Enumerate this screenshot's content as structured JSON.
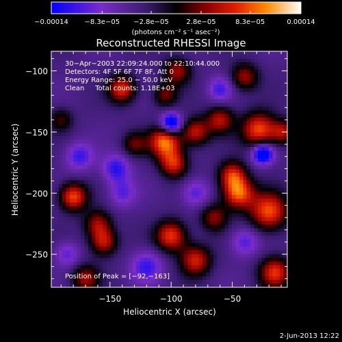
{
  "footer_date": "2-Jun-2013 12:22",
  "chart_data": {
    "type": "heatmap",
    "title": "Reconstructed RHESSI Image",
    "xlabel": "Heliocentric X (arcsec)",
    "ylabel": "Heliocentric Y (arcsec)",
    "xlim": [
      -198,
      -5
    ],
    "ylim": [
      -277,
      -84
    ],
    "xticks": [
      {
        "value": -150,
        "label": "−150"
      },
      {
        "value": -100,
        "label": "−100"
      },
      {
        "value": -50,
        "label": "−50"
      }
    ],
    "yticks": [
      {
        "value": -100,
        "label": "−100"
      },
      {
        "value": -150,
        "label": "−150"
      },
      {
        "value": -200,
        "label": "−200"
      },
      {
        "value": -250,
        "label": "−250"
      }
    ],
    "colorbar": {
      "range": [
        -0.00014,
        0.00014
      ],
      "ticks": [
        {
          "value": -0.00014,
          "label": "−0.00014"
        },
        {
          "value": -8.3e-05,
          "label": "−8.3e−05"
        },
        {
          "value": -2.8e-05,
          "label": "−2.8e−05"
        },
        {
          "value": 2.8e-05,
          "label": "2.8e−05"
        },
        {
          "value": 8.3e-05,
          "label": "8.3e−05"
        },
        {
          "value": 0.00014,
          "label": "0.00014"
        }
      ],
      "unit_label": "(photons cm⁻² s⁻¹ asec⁻²)",
      "stops": [
        "#0000ff",
        "#7a2cc8",
        "#3a1c6e",
        "#000000",
        "#8a0000",
        "#e02000",
        "#ff8a00",
        "#ffffff"
      ]
    },
    "annotations": [
      "30−Apr−2003 22:09:24.000 to 22:10:44.000",
      "Detectors: 4F 5F 6F 7F 8F, Att 0",
      "Energy Range: 25.0 − 50.0 keV",
      "Clean     Total counts: 1.18E+03"
    ],
    "peak_label": "Position of Peak = [−92,−163]",
    "peak": {
      "x": -92,
      "y": -163
    },
    "blobs": [
      {
        "x": -105,
        "y": -158,
        "amp": 1.0,
        "s": 9
      },
      {
        "x": -98,
        "y": -176,
        "amp": 0.75,
        "s": 8
      },
      {
        "x": -80,
        "y": -150,
        "amp": 0.7,
        "s": 8
      },
      {
        "x": -28,
        "y": -148,
        "amp": 0.9,
        "s": 10
      },
      {
        "x": -60,
        "y": -140,
        "amp": 0.65,
        "s": 8
      },
      {
        "x": -45,
        "y": -200,
        "amp": 0.95,
        "s": 9
      },
      {
        "x": -50,
        "y": -185,
        "amp": 0.75,
        "s": 8
      },
      {
        "x": -20,
        "y": -215,
        "amp": 0.9,
        "s": 11
      },
      {
        "x": -140,
        "y": -115,
        "amp": 0.8,
        "s": 8
      },
      {
        "x": -180,
        "y": -203,
        "amp": 0.9,
        "s": 8
      },
      {
        "x": -160,
        "y": -225,
        "amp": 0.6,
        "s": 8
      },
      {
        "x": -155,
        "y": -240,
        "amp": 0.7,
        "s": 8
      },
      {
        "x": -100,
        "y": -235,
        "amp": 0.85,
        "s": 9
      },
      {
        "x": -80,
        "y": -255,
        "amp": 0.75,
        "s": 9
      },
      {
        "x": -15,
        "y": -265,
        "amp": 0.8,
        "s": 9
      },
      {
        "x": -40,
        "y": -105,
        "amp": 0.6,
        "s": 8
      },
      {
        "x": -95,
        "y": -100,
        "amp": 0.6,
        "s": 8
      },
      {
        "x": -105,
        "y": -120,
        "amp": 0.5,
        "s": 7
      },
      {
        "x": -130,
        "y": -160,
        "amp": 0.45,
        "s": 7
      },
      {
        "x": -190,
        "y": -140,
        "amp": 0.4,
        "s": 7
      },
      {
        "x": -170,
        "y": -270,
        "amp": 0.6,
        "s": 8
      },
      {
        "x": -65,
        "y": -220,
        "amp": 0.55,
        "s": 8
      },
      {
        "x": -8,
        "y": -150,
        "amp": 0.6,
        "s": 7
      },
      {
        "x": -100,
        "y": -143,
        "amp": -0.95,
        "s": 6
      },
      {
        "x": -25,
        "y": -168,
        "amp": -0.95,
        "s": 6
      },
      {
        "x": -145,
        "y": -180,
        "amp": -0.55,
        "s": 8
      },
      {
        "x": -120,
        "y": -260,
        "amp": -0.5,
        "s": 9
      },
      {
        "x": -175,
        "y": -170,
        "amp": -0.5,
        "s": 8
      },
      {
        "x": -80,
        "y": -200,
        "amp": -0.45,
        "s": 8
      },
      {
        "x": -140,
        "y": -200,
        "amp": -0.4,
        "s": 8
      },
      {
        "x": -60,
        "y": -115,
        "amp": -0.45,
        "s": 7
      },
      {
        "x": -40,
        "y": -240,
        "amp": -0.45,
        "s": 8
      },
      {
        "x": -185,
        "y": -250,
        "amp": -0.4,
        "s": 7
      }
    ]
  }
}
